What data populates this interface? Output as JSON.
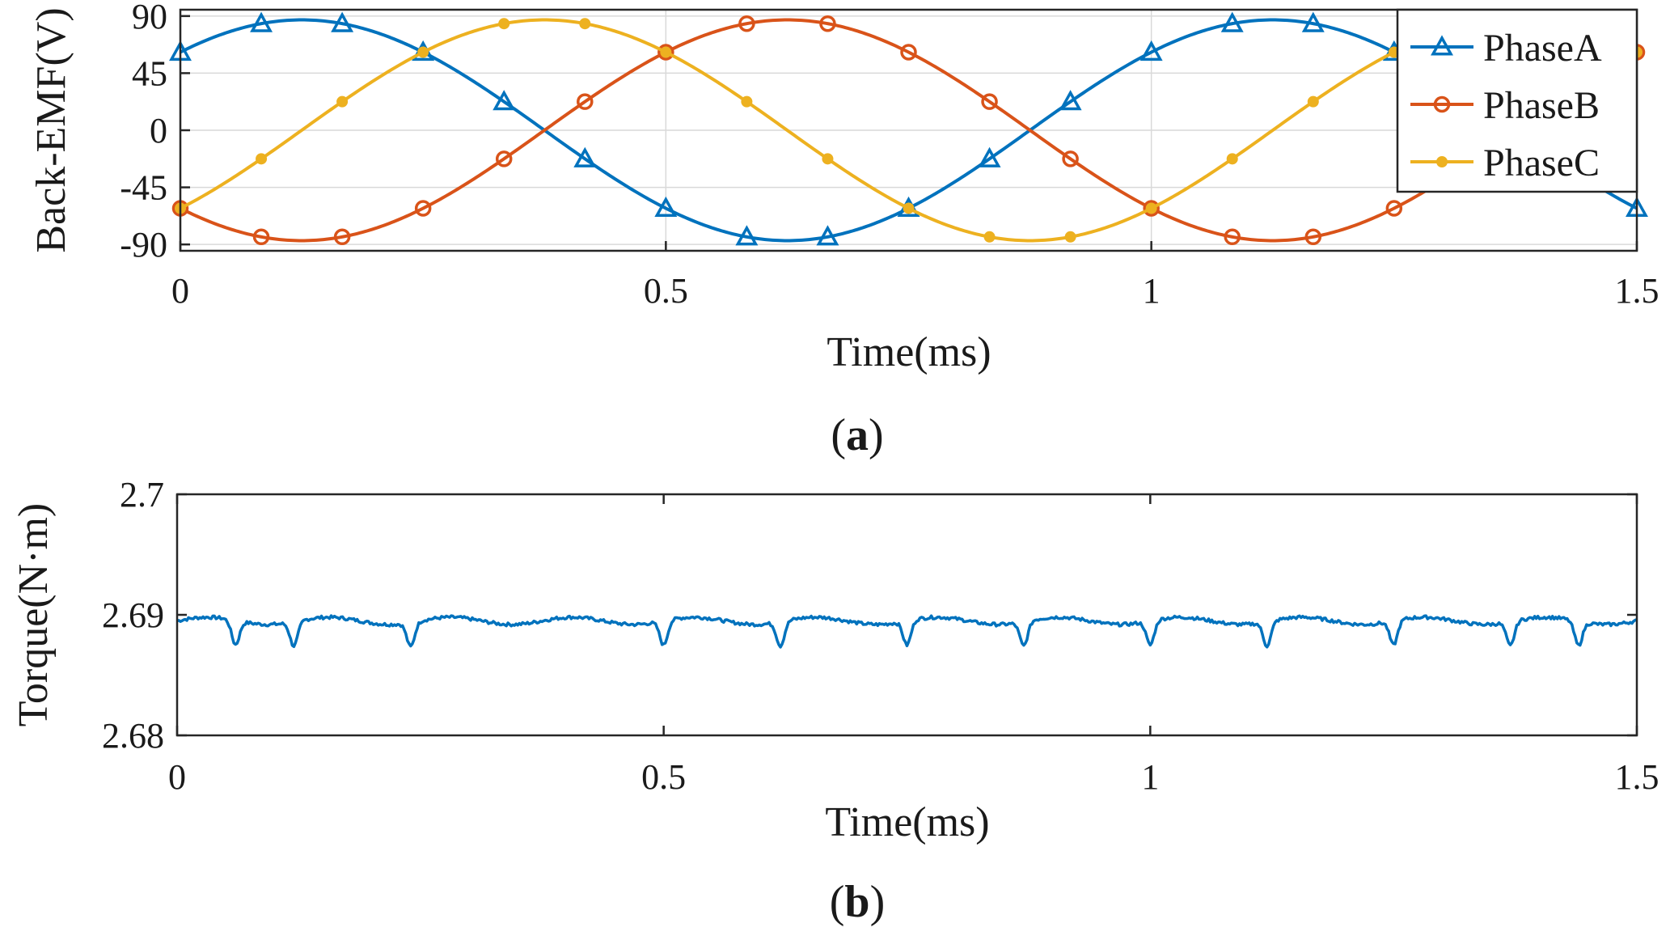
{
  "chart_data": [
    {
      "type": "line",
      "panel_caption": "a",
      "xlabel": "Time(ms)",
      "ylabel": "Back-EMF(V)",
      "xlim": [
        0,
        1.5
      ],
      "ylim": [
        -95,
        95
      ],
      "xticks": [
        0,
        0.5,
        1,
        1.5
      ],
      "xtick_labels": [
        "0",
        "0.5",
        "1",
        "1.5"
      ],
      "yticks": [
        90,
        45,
        0,
        -45,
        -90
      ],
      "ytick_labels": [
        "90",
        "45",
        "0",
        "-45",
        "-90"
      ],
      "grid": true,
      "legend_position": "top-right",
      "amplitude": 87,
      "period_ms": 1.0,
      "marker_step_ms": 0.0833,
      "series": [
        {
          "name": "PhaseA",
          "color": "#0072BD",
          "marker": "triangle",
          "peak_time_ms": 0.125
        },
        {
          "name": "PhaseB",
          "color": "#D95319",
          "marker": "circle",
          "peak_time_ms": 0.625
        },
        {
          "name": "PhaseC",
          "color": "#EDB120",
          "marker": "dot",
          "peak_time_ms": 0.375
        }
      ]
    },
    {
      "type": "line",
      "panel_caption": "b",
      "xlabel": "Time(ms)",
      "ylabel": "Torque(N·m)",
      "xlim": [
        0,
        1.5
      ],
      "ylim": [
        2.68,
        2.7
      ],
      "xticks": [
        0,
        0.5,
        1,
        1.5
      ],
      "xtick_labels": [
        "0",
        "0.5",
        "1",
        "1.5"
      ],
      "yticks": [
        2.7,
        2.69,
        2.68
      ],
      "ytick_labels": [
        "2.7",
        "2.69",
        "2.68"
      ],
      "grid": false,
      "series": [
        {
          "color": "#0072BD",
          "mean_value": 2.6895,
          "ripple_amplitude": 0.0003,
          "dip_times_ms": [
            0.06,
            0.12,
            0.24,
            0.5,
            0.62,
            0.75,
            0.87,
            1.0,
            1.12,
            1.25,
            1.37,
            1.44
          ],
          "dip_min_value": 2.6875
        }
      ]
    }
  ]
}
